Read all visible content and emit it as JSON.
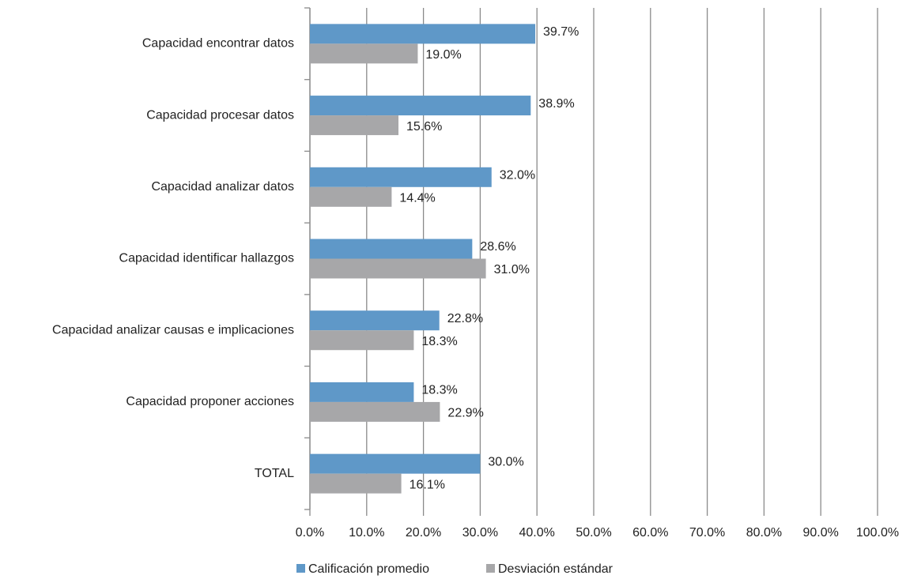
{
  "chart_data": {
    "type": "hbar",
    "categories": [
      "Capacidad encontrar datos",
      "Capacidad procesar datos",
      "Capacidad analizar datos",
      "Capacidad identificar hallazgos",
      "Capacidad analizar causas e implicaciones",
      "Capacidad proponer acciones",
      "TOTAL"
    ],
    "series": [
      {
        "name": "Calificación promedio",
        "color": "#5f98c8",
        "values": [
          39.7,
          38.9,
          32.0,
          28.6,
          22.8,
          18.3,
          30.0
        ],
        "value_labels": [
          "39.7%",
          "38.9%",
          "32.0%",
          "28.6%",
          "22.8%",
          "18.3%",
          "30.0%"
        ]
      },
      {
        "name": "Desviación estándar",
        "color": "#a7a7a9",
        "values": [
          19.0,
          15.6,
          14.4,
          31.0,
          18.3,
          22.9,
          16.1
        ],
        "value_labels": [
          "19.0%",
          "15.6%",
          "14.4%",
          "31.0%",
          "18.3%",
          "22.9%",
          "16.1%"
        ]
      }
    ],
    "xlim": [
      0,
      100
    ],
    "xticks": [
      {
        "value": 0,
        "label": "0.0%"
      },
      {
        "value": 10,
        "label": "10.0%"
      },
      {
        "value": 20,
        "label": "20.0%"
      },
      {
        "value": 30,
        "label": "30.0%"
      },
      {
        "value": 40,
        "label": "40.0%"
      },
      {
        "value": 50,
        "label": "50.0%"
      },
      {
        "value": 60,
        "label": "60.0%"
      },
      {
        "value": 70,
        "label": "70.0%"
      },
      {
        "value": 80,
        "label": "80.0%"
      },
      {
        "value": 90,
        "label": "90.0%"
      },
      {
        "value": 100,
        "label": "100.0%"
      }
    ],
    "grid": true,
    "legend": "bottom"
  }
}
